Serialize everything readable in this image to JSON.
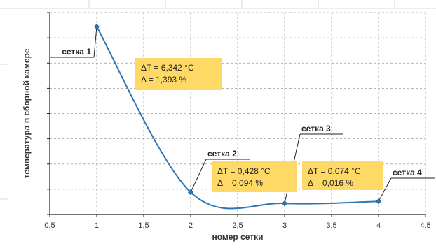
{
  "chart_data": {
    "type": "line",
    "title": "",
    "xlabel": "номер сетки",
    "ylabel": "температура в сборной камере",
    "xlim": [
      0.5,
      4.5
    ],
    "ylim": [
      0,
      10
    ],
    "x_ticks": [
      "0,5",
      "1",
      "1,5",
      "2",
      "2,5",
      "3",
      "3,5",
      "4",
      "4,5"
    ],
    "y_gridlines": 8,
    "grid": "dashed",
    "smooth": true,
    "series_color": "#2e75b6",
    "annotation_color": "#ffd966",
    "series": [
      {
        "x": [
          1,
          2,
          3,
          4
        ],
        "y": [
          9.3,
          1.1,
          0.55,
          0.65
        ]
      }
    ],
    "point_labels": [
      "сетка 1",
      "сетка 2",
      "сетка 3",
      "сетка 4"
    ],
    "annotations": [
      {
        "lines": [
          "ΔT = 6,342 °C",
          "Δ = 1,393 %"
        ]
      },
      {
        "lines": [
          "ΔT = 0,428 °C",
          "Δ = 0,094 %"
        ]
      },
      {
        "lines": [
          "ΔT = 0,074 °C",
          "Δ = 0,016 %"
        ]
      }
    ]
  }
}
